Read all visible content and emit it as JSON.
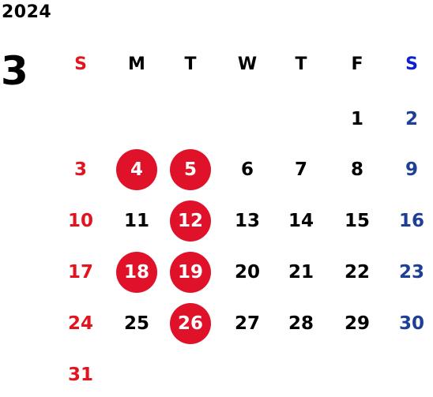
{
  "calendar": {
    "year": "2024",
    "month": "3",
    "weekdays": [
      "S",
      "M",
      "T",
      "W",
      "T",
      "F",
      "S"
    ],
    "weeks": [
      [
        "",
        "",
        "",
        "",
        "",
        "1",
        "2"
      ],
      [
        "3",
        "4",
        "5",
        "6",
        "7",
        "8",
        "9"
      ],
      [
        "10",
        "11",
        "12",
        "13",
        "14",
        "15",
        "16"
      ],
      [
        "17",
        "18",
        "19",
        "20",
        "21",
        "22",
        "23"
      ],
      [
        "24",
        "25",
        "26",
        "27",
        "28",
        "29",
        "30"
      ],
      [
        "31",
        "",
        "",
        "",
        "",
        "",
        ""
      ]
    ],
    "highlighted_days": [
      "4",
      "5",
      "12",
      "18",
      "19",
      "26"
    ]
  },
  "colors": {
    "sunday": "#e0151f",
    "saturday": "#1d3f94",
    "saturday_header": "#0b1fd6",
    "highlight_bg": "#e0122a",
    "text": "#000000"
  }
}
